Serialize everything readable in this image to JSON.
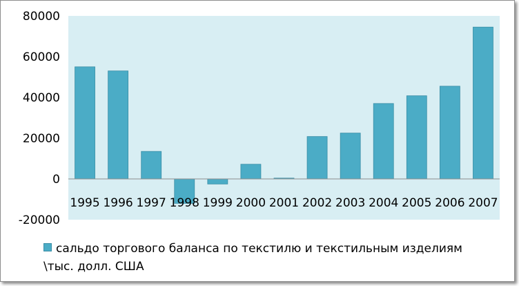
{
  "chart_data": {
    "type": "bar",
    "categories": [
      "1995",
      "1996",
      "1997",
      "1998",
      "1999",
      "2000",
      "2001",
      "2002",
      "2003",
      "2004",
      "2005",
      "2006",
      "2007"
    ],
    "series": [
      {
        "name": "сальдо торгового баланса по текстилю и текстильным изделиям \\тыс. долл. США",
        "values": [
          55000,
          53000,
          13500,
          -12000,
          -2500,
          7200,
          400,
          20800,
          22500,
          37000,
          40800,
          45500,
          74500
        ]
      }
    ],
    "ylim": [
      -20000,
      80000
    ],
    "yticks": [
      80000,
      60000,
      40000,
      20000,
      0,
      -20000
    ],
    "title": "",
    "xlabel": "",
    "ylabel": "",
    "grid": false,
    "legend": "bottom-left",
    "colors": {
      "bar": "#4bacc6",
      "bar_edge": "#3a8ea6",
      "plot_bg": "#d8eef3"
    }
  }
}
